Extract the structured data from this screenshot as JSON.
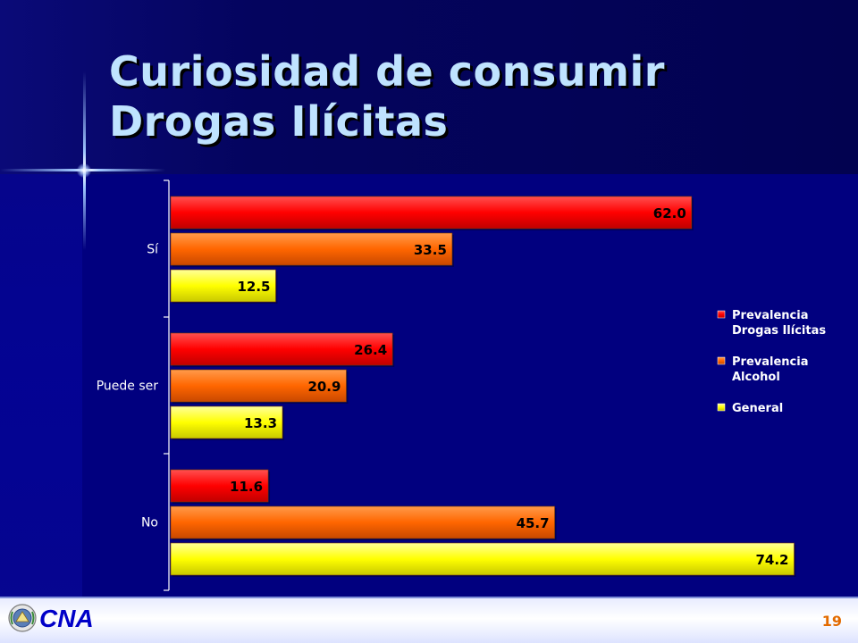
{
  "slide": {
    "title_line1": "Curiosidad de consumir",
    "title_line2": "Drogas Ilícitas",
    "logo_text": "CNA",
    "page_number": "19"
  },
  "colors": {
    "background": "#01007f",
    "title": "#bfe3ff",
    "series_1": "#ff0000",
    "series_2": "#ff6600",
    "series_3": "#ffff00",
    "page_number": "#e36b00"
  },
  "chart_data": {
    "type": "bar",
    "orientation": "horizontal",
    "categories": [
      "Sí",
      "Puede ser",
      "No"
    ],
    "series": [
      {
        "name": "Prevalencia Drogas Ilícitas",
        "legend_lines": [
          "Prevalencia",
          "Drogas Ilícitas"
        ],
        "values": [
          62.0,
          26.4,
          11.6
        ]
      },
      {
        "name": "Prevalencia Alcohol",
        "legend_lines": [
          "Prevalencia",
          "Alcohol"
        ],
        "values": [
          33.5,
          20.9,
          45.7
        ]
      },
      {
        "name": "General",
        "legend_lines": [
          "General"
        ],
        "values": [
          12.5,
          13.3,
          74.2
        ]
      }
    ],
    "data_labels": [
      [
        "62.0",
        "33.5",
        "12.5"
      ],
      [
        "26.4",
        "20.9",
        "13.3"
      ],
      [
        "11.6",
        "45.7",
        "74.2"
      ]
    ],
    "xlim": [
      0,
      75
    ],
    "legend": "right",
    "grid": false
  }
}
